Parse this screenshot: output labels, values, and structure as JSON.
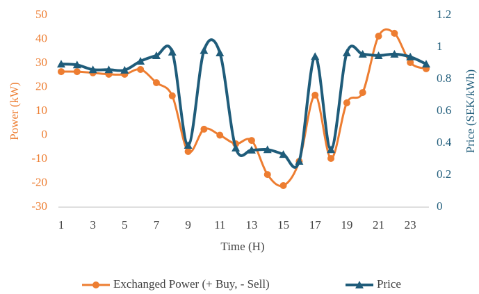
{
  "chart_data": {
    "type": "line",
    "x_label": "Time (H)",
    "y_label": "Power (kW)",
    "y2_label": "Price (SEK/kWh)",
    "x": [
      1,
      2,
      3,
      4,
      5,
      6,
      7,
      8,
      9,
      10,
      11,
      12,
      13,
      14,
      15,
      16,
      17,
      18,
      19,
      20,
      21,
      22,
      23,
      24
    ],
    "xlim": [
      1,
      24
    ],
    "xticks": [
      1,
      3,
      5,
      7,
      9,
      11,
      13,
      15,
      17,
      19,
      21,
      23
    ],
    "ylim": [
      -30,
      50
    ],
    "yticks": [
      -30,
      -20,
      -10,
      0,
      10,
      20,
      30,
      40,
      50
    ],
    "y2lim": [
      0,
      1.2
    ],
    "y2ticks": [
      0,
      0.2,
      0.4,
      0.6,
      0.8,
      1,
      1.2
    ],
    "smooth": true,
    "legend": "bottom",
    "series": [
      {
        "name": "Exchanged Power (+ Buy, - Sell)",
        "color": "#ED7D31",
        "marker": "circle",
        "axis": "y",
        "values": [
          26.5,
          26.5,
          26,
          25.4,
          25.4,
          27.4,
          21.9,
          16.4,
          -6.8,
          2.5,
          0,
          -3.6,
          -2.2,
          -16.4,
          -21,
          -10.9,
          16.7,
          -9.7,
          13.5,
          17.8,
          41.3,
          42.5,
          30.3,
          27.7
        ]
      },
      {
        "name": "Price",
        "color": "#1F5C7A",
        "marker": "triangle",
        "axis": "y2",
        "values": [
          0.895,
          0.89,
          0.86,
          0.86,
          0.857,
          0.913,
          0.948,
          0.97,
          0.387,
          0.98,
          0.965,
          0.37,
          0.357,
          0.36,
          0.33,
          0.287,
          0.943,
          0.36,
          0.965,
          0.957,
          0.948,
          0.957,
          0.94,
          0.895
        ]
      }
    ]
  }
}
